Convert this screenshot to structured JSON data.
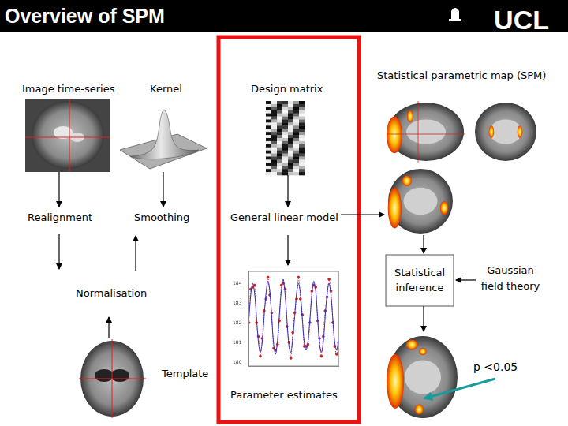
{
  "header": {
    "title": "Overview of SPM",
    "logo": "UCL"
  },
  "nodes": {
    "image_time_series": "Image time-series",
    "kernel": "Kernel",
    "design_matrix": "Design matrix",
    "spm": "Statistical parametric map (SPM)",
    "realignment": "Realignment",
    "smoothing": "Smoothing",
    "glm": "General linear model",
    "normalisation": "Normalisation",
    "template": "Template",
    "statistical_inference": [
      "Statistical",
      "inference"
    ],
    "gaussian_field_theory": [
      "Gaussian",
      "field theory"
    ],
    "threshold": "p <0.05",
    "parameter_estimates": "Parameter estimates"
  },
  "chart_data": {
    "type": "line",
    "x": [
      1,
      2,
      3,
      4,
      5,
      6,
      7,
      8,
      9,
      10,
      11,
      12,
      13,
      14,
      15,
      16,
      17,
      18,
      19,
      20,
      21,
      22,
      23,
      24,
      25,
      26,
      27,
      28,
      29,
      30,
      31,
      32,
      33,
      34,
      35,
      36,
      37,
      38,
      39,
      40,
      41,
      42,
      43,
      44,
      45,
      46,
      47,
      48
    ],
    "xlim": [
      1,
      48
    ],
    "ylim": [
      179.8,
      184.6
    ],
    "yticks": [
      180,
      181,
      182,
      183,
      184
    ],
    "grid": false,
    "tick_labels": "y",
    "series": [
      {
        "color": "#3030c0",
        "line_style": "solid",
        "marker": "none",
        "values": [
          182.2,
          183.4,
          184.0,
          183.5,
          182.3,
          181.0,
          180.5,
          181.0,
          182.3,
          183.5,
          184.1,
          183.6,
          182.2,
          180.9,
          180.4,
          181.1,
          182.4,
          183.6,
          184.2,
          183.4,
          182.1,
          180.8,
          180.5,
          181.2,
          182.3,
          183.5,
          184.0,
          183.5,
          182.2,
          181.0,
          180.6,
          181.1,
          182.2,
          183.4,
          184.1,
          183.6,
          182.3,
          180.9,
          180.5,
          181.0,
          182.3,
          183.5,
          184.0,
          183.4,
          182.2,
          181.0,
          180.6,
          181.2
        ]
      },
      {
        "color": "#cc2020",
        "line_style": "dotted",
        "marker": "circle",
        "values": [
          182.0,
          183.7,
          183.8,
          183.9,
          182.0,
          181.3,
          180.3,
          181.2,
          182.6,
          183.2,
          184.3,
          183.4,
          182.5,
          180.7,
          180.6,
          180.9,
          182.1,
          183.9,
          184.0,
          183.7,
          181.8,
          181.0,
          180.2,
          181.5,
          182.5,
          183.2,
          184.3,
          183.2,
          182.4,
          180.8,
          180.8,
          180.9,
          182.0,
          183.6,
          183.9,
          183.8,
          182.1,
          181.2,
          180.3,
          181.3,
          182.6,
          183.3,
          184.2,
          183.6,
          182.0,
          180.8,
          180.4,
          181.0
        ]
      }
    ]
  }
}
